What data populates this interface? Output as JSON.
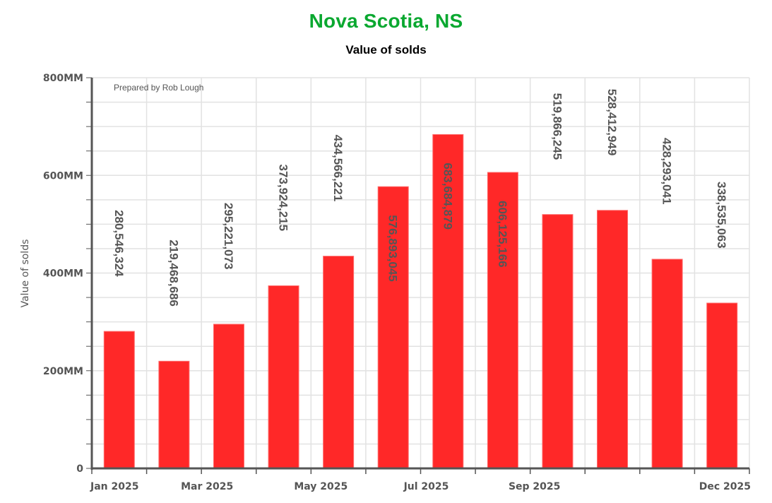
{
  "header": {
    "title": "Nova Scotia, NS",
    "subtitle": "Value of solds"
  },
  "credit": "Prepared by Rob Lough",
  "colors": {
    "title": "#0aa830",
    "bar": "#ff2828",
    "axis": "#555555",
    "grid": "#e2e2e2",
    "label": "#555555"
  },
  "chart_data": {
    "type": "bar",
    "title": "Nova Scotia, NS",
    "subtitle": "Value of solds",
    "xlabel": "",
    "ylabel": "Value of solds",
    "ylim": [
      0,
      800000000
    ],
    "y_ticks": [
      0,
      200000000,
      400000000,
      600000000,
      800000000
    ],
    "y_tick_labels": [
      "0",
      "200MM",
      "400MM",
      "600MM",
      "800MM"
    ],
    "x_tick_labels": [
      "Jan 2025",
      "Mar 2025",
      "May 2025",
      "Jul 2025",
      "Sep 2025",
      "Dec 2025"
    ],
    "grid": true,
    "legend": null,
    "categories": [
      "Jan 2025",
      "Feb 2025",
      "Mar 2025",
      "Apr 2025",
      "May 2025",
      "Jun 2025",
      "Jul 2025",
      "Aug 2025",
      "Sep 2025",
      "Oct 2025",
      "Nov 2025",
      "Dec 2025"
    ],
    "values": [
      280546324,
      219468686,
      295221073,
      373924215,
      434566221,
      576893045,
      683684879,
      606125166,
      519866245,
      528412949,
      428293041,
      338535063
    ],
    "value_labels": [
      "280,546,324",
      "219,468,686",
      "295,221,073",
      "373,924,215",
      "434,566,221",
      "576,893,045",
      "683,684,879",
      "606,125,166",
      "519,866,245",
      "528,412,949",
      "428,293,041",
      "338,535,063"
    ],
    "annotations": [
      "Prepared by Rob Lough"
    ]
  }
}
